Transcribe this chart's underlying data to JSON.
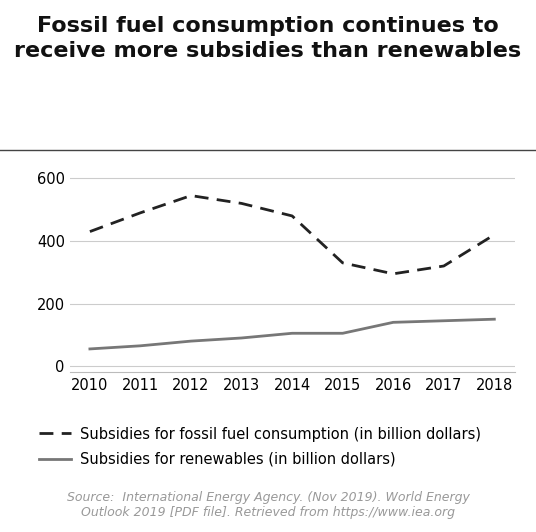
{
  "title": "Fossil fuel consumption continues to\nreceive more subsidies than renewables",
  "years": [
    2010,
    2011,
    2012,
    2013,
    2014,
    2015,
    2016,
    2017,
    2018
  ],
  "fossil_fuel": [
    430,
    490,
    545,
    520,
    480,
    330,
    295,
    320,
    420
  ],
  "renewables": [
    55,
    65,
    80,
    90,
    105,
    105,
    140,
    145,
    150
  ],
  "fossil_color": "#222222",
  "renewables_color": "#777777",
  "background_color": "#ffffff",
  "ylim": [
    -20,
    660
  ],
  "yticks": [
    0,
    200,
    400,
    600
  ],
  "legend_fossil": "Subsidies for fossil fuel consumption (in billion dollars)",
  "legend_renewables": "Subsidies for renewables (in billion dollars)",
  "source_text": "Source:  International Energy Agency. (Nov 2019). World Energy\nOutlook 2019 [PDF file]. Retrieved from https://www.iea.org",
  "title_fontsize": 16,
  "tick_fontsize": 10.5,
  "legend_fontsize": 10.5,
  "source_fontsize": 9
}
